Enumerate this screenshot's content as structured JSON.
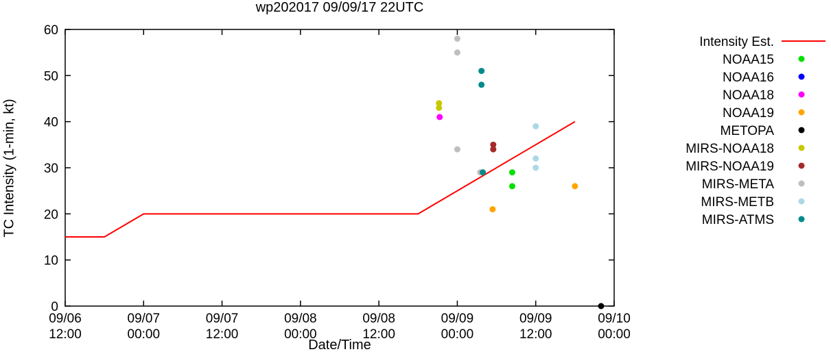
{
  "title": "wp202017 09/09/17 22UTC",
  "chart_data": {
    "type": "scatter",
    "title": "wp202017 09/09/17 22UTC",
    "xlabel": "Date/Time",
    "ylabel": "TC Intensity (1-min, kt)",
    "ylim": [
      0,
      60
    ],
    "yticks": [
      0,
      10,
      20,
      30,
      40,
      50,
      60
    ],
    "xlim_hours": [
      0,
      84
    ],
    "x_unit": "hours since 09/06 12:00",
    "grid": false,
    "legend_position": "right-outside",
    "xticks": [
      {
        "hours": 0,
        "date": "09/06",
        "time": "12:00"
      },
      {
        "hours": 12,
        "date": "09/07",
        "time": "00:00"
      },
      {
        "hours": 24,
        "date": "09/07",
        "time": "12:00"
      },
      {
        "hours": 36,
        "date": "09/08",
        "time": "00:00"
      },
      {
        "hours": 48,
        "date": "09/08",
        "time": "12:00"
      },
      {
        "hours": 60,
        "date": "09/09",
        "time": "00:00"
      },
      {
        "hours": 72,
        "date": "09/09",
        "time": "12:00"
      },
      {
        "hours": 84,
        "date": "09/10",
        "time": "00:00"
      }
    ],
    "line_series": {
      "name": "Intensity Est.",
      "color": "#ff0000",
      "points": [
        [
          0,
          15
        ],
        [
          6,
          15
        ],
        [
          12,
          20
        ],
        [
          54,
          20
        ],
        [
          78,
          40
        ]
      ]
    },
    "scatter_series": [
      {
        "name": "NOAA15",
        "color": "#00e000",
        "points": [
          [
            68.4,
            29
          ],
          [
            68.4,
            26
          ]
        ]
      },
      {
        "name": "NOAA16",
        "color": "#0000ff",
        "points": []
      },
      {
        "name": "NOAA18",
        "color": "#ff00ff",
        "points": [
          [
            57.3,
            41
          ]
        ]
      },
      {
        "name": "NOAA19",
        "color": "#ffa500",
        "points": [
          [
            65.4,
            21
          ],
          [
            78,
            26
          ]
        ]
      },
      {
        "name": "METOPA",
        "color": "#000000",
        "points": [
          [
            82,
            0
          ]
        ]
      },
      {
        "name": "MIRS-NOAA18",
        "color": "#c8c800",
        "points": [
          [
            57.2,
            44
          ],
          [
            57.2,
            43
          ]
        ]
      },
      {
        "name": "MIRS-NOAA19",
        "color": "#a52a2a",
        "points": [
          [
            65.5,
            35
          ],
          [
            65.5,
            34
          ]
        ]
      },
      {
        "name": "MIRS-META",
        "color": "#bebebe",
        "points": [
          [
            60,
            58
          ],
          [
            60,
            55
          ],
          [
            60,
            34
          ],
          [
            63.5,
            29
          ]
        ]
      },
      {
        "name": "MIRS-METB",
        "color": "#add8e6",
        "points": [
          [
            72,
            39
          ],
          [
            72,
            32
          ],
          [
            72,
            30
          ]
        ]
      },
      {
        "name": "MIRS-ATMS",
        "color": "#008b8b",
        "points": [
          [
            63.7,
            51
          ],
          [
            63.7,
            48
          ],
          [
            63.9,
            29
          ]
        ]
      }
    ]
  }
}
